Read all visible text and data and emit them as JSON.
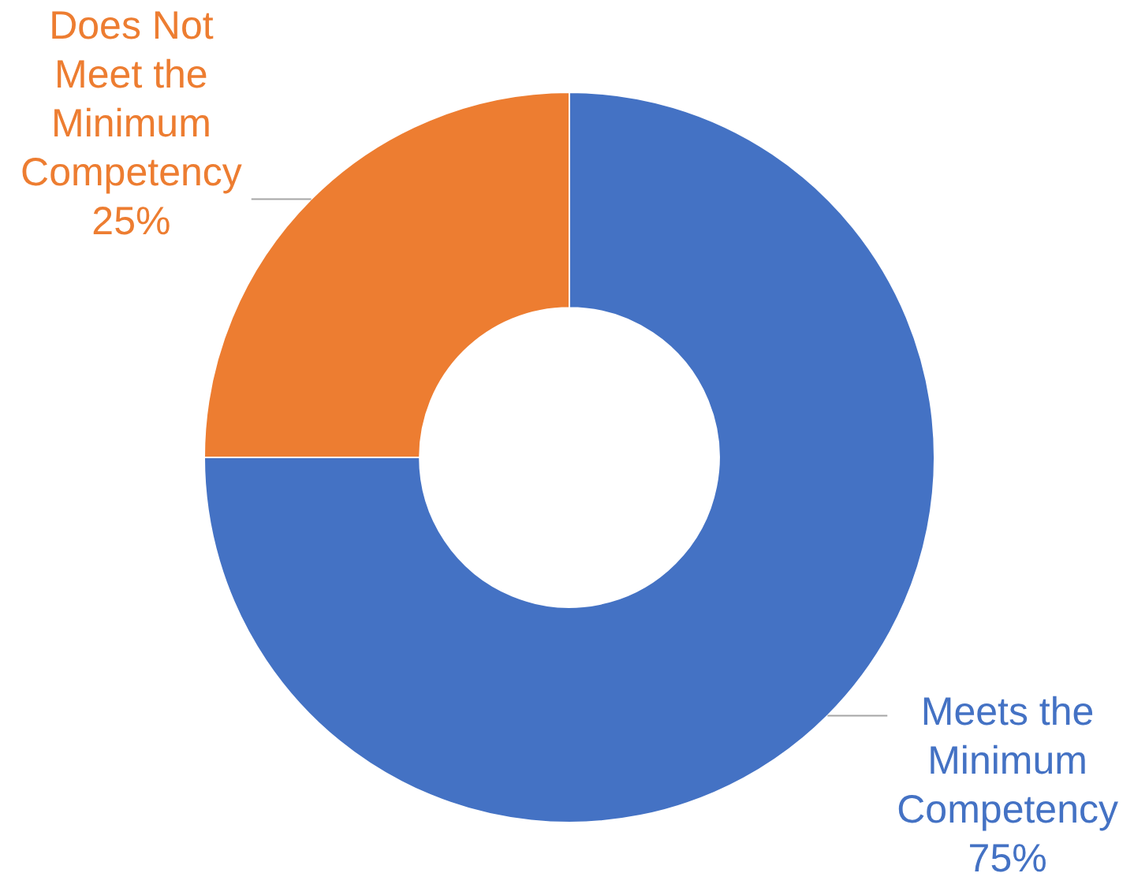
{
  "chart_data": {
    "type": "donut",
    "categories": [
      "Meets the Minimum Competency",
      "Does Not Meet the Minimum Competency"
    ],
    "values": [
      75,
      25
    ],
    "colors": [
      "#4472c4",
      "#ed7d31"
    ],
    "value_labels": [
      "75%",
      "25%"
    ],
    "legend": false
  }
}
